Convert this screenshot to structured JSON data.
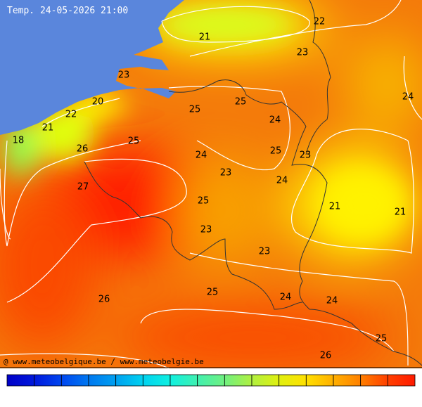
{
  "header": {
    "title": "Temp. 24-05-2026 21:00"
  },
  "labels": [
    "21",
    "22",
    "23",
    "24",
    "23",
    "20",
    "25",
    "22",
    "25",
    "24",
    "21",
    "18",
    "25",
    "26",
    "24",
    "25",
    "23",
    "23",
    "24",
    "27",
    "25",
    "21",
    "21",
    "23",
    "23",
    "25",
    "24",
    "24",
    "26",
    "25",
    "26"
  ],
  "footer": {
    "credit": "@ www.meteobelgique.be / www.meteobelgie.be"
  }
}
